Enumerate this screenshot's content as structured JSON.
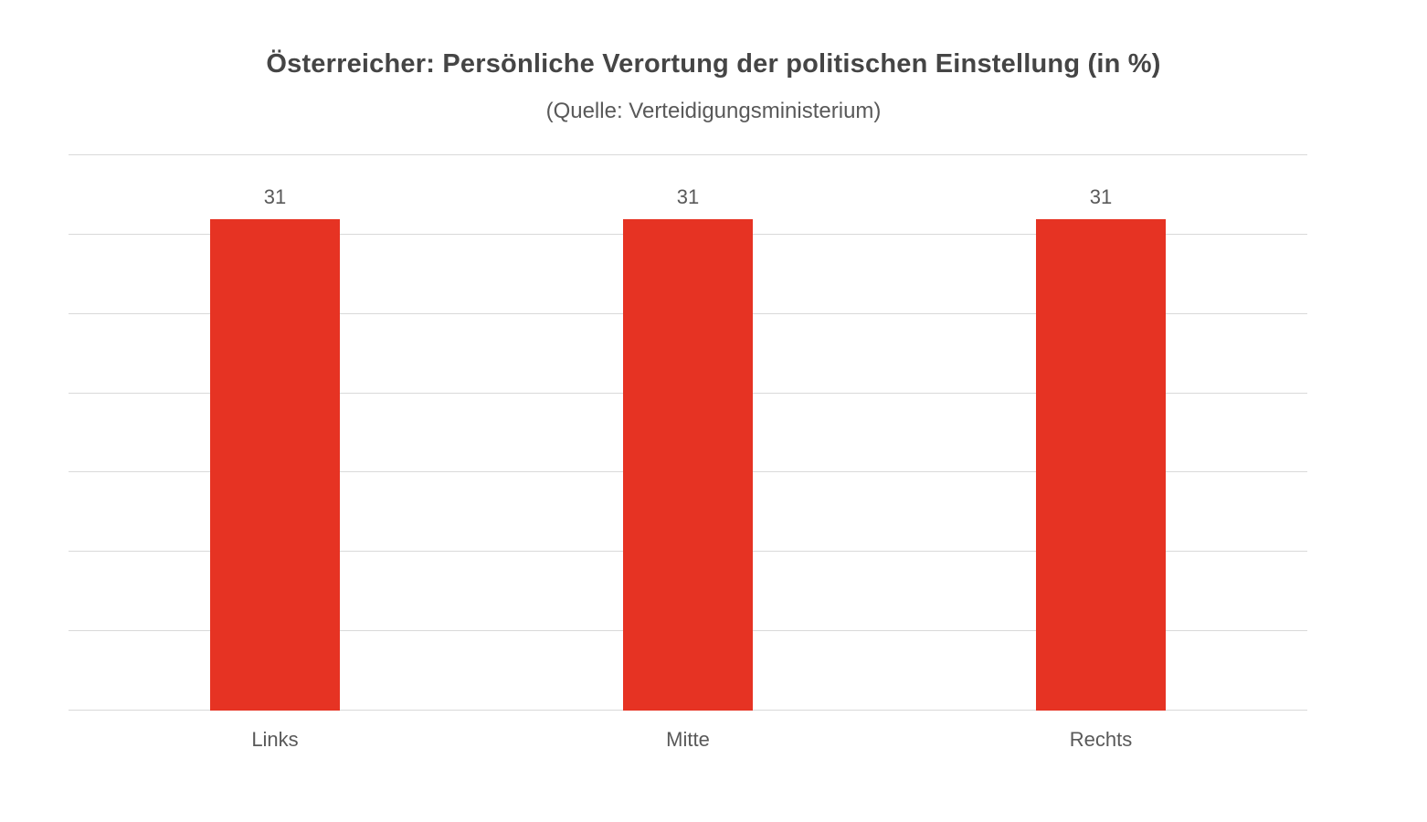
{
  "title": "Österreicher: Persönliche Verortung der politischen Einstellung (in %)",
  "subtitle": "(Quelle: Verteidigungsministerium)",
  "colors": {
    "bar": "#E63323",
    "gridline": "#D9D9D9",
    "axis_line": "#D9D9D9",
    "title_text": "#454545",
    "label_text": "#595959"
  },
  "chart_data": {
    "type": "bar",
    "title": "Österreicher: Persönliche Verortung der politischen Einstellung (in %)",
    "subtitle": "(Quelle: Verteidigungsministerium)",
    "categories": [
      "Links",
      "Mitte",
      "Rechts"
    ],
    "values": [
      31,
      31,
      31
    ],
    "data_labels": [
      "31",
      "31",
      "31"
    ],
    "xlabel": "",
    "ylabel": "",
    "ylim": [
      0,
      35
    ],
    "gridline_step": 5,
    "grid": true,
    "y_tick_labels_visible": false,
    "legend": "none"
  }
}
